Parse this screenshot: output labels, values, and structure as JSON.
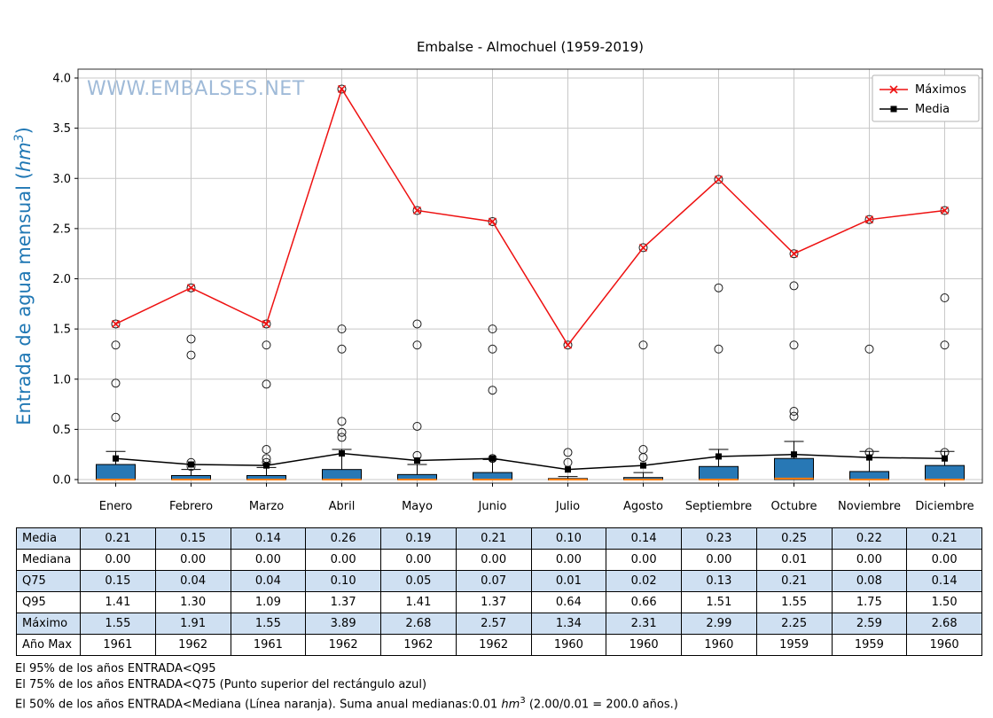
{
  "title": "Embalse - Almochuel (1959-2019)",
  "watermark": "WWW.EMBALSES.NET",
  "y_axis_label": {
    "prefix": "Entrada de agua mensual (",
    "unit": "hm",
    "sup": "3",
    "suffix": ")"
  },
  "chart_data": {
    "type": "boxplot",
    "title": "Embalse - Almochuel (1959-2019)",
    "ylabel": "Entrada de agua mensual (hm3)",
    "ylim": [
      0,
      4.0
    ],
    "yticks": [
      0.0,
      0.5,
      1.0,
      1.5,
      2.0,
      2.5,
      3.0,
      3.5,
      4.0
    ],
    "grid": true,
    "legend_position": "upper right",
    "categories": [
      "Enero",
      "Febrero",
      "Marzo",
      "Abril",
      "Mayo",
      "Junio",
      "Julio",
      "Agosto",
      "Septiembre",
      "Octubre",
      "Noviembre",
      "Diciembre"
    ],
    "series": [
      {
        "name": "Máximos",
        "type": "line",
        "marker": "x",
        "color": "#ee1111",
        "values": [
          1.55,
          1.91,
          1.55,
          3.89,
          2.68,
          2.57,
          1.34,
          2.31,
          2.99,
          2.25,
          2.59,
          2.68
        ]
      },
      {
        "name": "Media",
        "type": "line",
        "marker": "square",
        "color": "#000000",
        "values": [
          0.21,
          0.15,
          0.14,
          0.26,
          0.19,
          0.21,
          0.1,
          0.14,
          0.23,
          0.25,
          0.22,
          0.21
        ]
      }
    ],
    "box": {
      "median": [
        0.0,
        0.0,
        0.0,
        0.0,
        0.0,
        0.0,
        0.0,
        0.0,
        0.0,
        0.01,
        0.0,
        0.0
      ],
      "q25": [
        0.0,
        0.0,
        0.0,
        0.0,
        0.0,
        0.0,
        0.0,
        0.0,
        0.0,
        0.0,
        0.0,
        0.0
      ],
      "q75": [
        0.15,
        0.04,
        0.04,
        0.1,
        0.05,
        0.07,
        0.01,
        0.02,
        0.13,
        0.21,
        0.08,
        0.14
      ],
      "whisker_top": [
        0.28,
        0.1,
        0.12,
        0.3,
        0.15,
        0.2,
        0.03,
        0.07,
        0.3,
        0.38,
        0.28,
        0.28
      ],
      "outliers": [
        [
          0.62,
          0.96,
          1.34,
          1.55
        ],
        [
          0.13,
          0.17,
          1.24,
          1.4,
          1.91
        ],
        [
          0.17,
          0.21,
          0.3,
          0.95,
          1.34,
          1.55
        ],
        [
          0.42,
          0.47,
          0.58,
          1.3,
          1.5,
          3.89
        ],
        [
          0.24,
          0.53,
          1.34,
          1.55,
          2.68
        ],
        [
          0.21,
          0.89,
          1.3,
          1.5,
          2.57
        ],
        [
          0.17,
          0.27,
          1.34
        ],
        [
          0.22,
          0.3,
          1.34,
          2.31
        ],
        [
          1.3,
          1.91,
          2.99
        ],
        [
          0.63,
          0.68,
          1.34,
          1.93,
          2.25
        ],
        [
          0.27,
          1.3,
          2.59
        ],
        [
          0.27,
          1.34,
          1.81,
          2.68
        ]
      ]
    },
    "colors": {
      "box_fill": "#2878b5",
      "median_line": "#ff7f0e",
      "grid": "#c8c8c8",
      "ylabel": "#1f77b4",
      "watermark": "#8fafd2",
      "plot_border": "#2b2b2b"
    }
  },
  "table": {
    "rows": [
      {
        "label": "Media",
        "shaded": true,
        "values": [
          "0.21",
          "0.15",
          "0.14",
          "0.26",
          "0.19",
          "0.21",
          "0.10",
          "0.14",
          "0.23",
          "0.25",
          "0.22",
          "0.21"
        ]
      },
      {
        "label": "Mediana",
        "shaded": false,
        "values": [
          "0.00",
          "0.00",
          "0.00",
          "0.00",
          "0.00",
          "0.00",
          "0.00",
          "0.00",
          "0.00",
          "0.01",
          "0.00",
          "0.00"
        ]
      },
      {
        "label": "Q75",
        "shaded": true,
        "values": [
          "0.15",
          "0.04",
          "0.04",
          "0.10",
          "0.05",
          "0.07",
          "0.01",
          "0.02",
          "0.13",
          "0.21",
          "0.08",
          "0.14"
        ]
      },
      {
        "label": "Q95",
        "shaded": false,
        "values": [
          "1.41",
          "1.30",
          "1.09",
          "1.37",
          "1.41",
          "1.37",
          "0.64",
          "0.66",
          "1.51",
          "1.55",
          "1.75",
          "1.50"
        ]
      },
      {
        "label": "Máximo",
        "shaded": true,
        "values": [
          "1.55",
          "1.91",
          "1.55",
          "3.89",
          "2.68",
          "2.57",
          "1.34",
          "2.31",
          "2.99",
          "2.25",
          "2.59",
          "2.68"
        ]
      },
      {
        "label": "Año Max",
        "shaded": false,
        "values": [
          "1961",
          "1962",
          "1961",
          "1962",
          "1962",
          "1962",
          "1960",
          "1960",
          "1960",
          "1959",
          "1959",
          "1960"
        ]
      }
    ]
  },
  "footnotes": [
    "El 95% de los años ENTRADA<Q95",
    "El 75% de los años ENTRADA<Q75 (Punto superior del rectángulo azul)"
  ],
  "footnote3": {
    "pre": "El 50% de los años ENTRADA<Mediana (Línea naranja). Suma anual medianas:0.01 ",
    "unit": "hm",
    "sup": "3",
    "post": " (2.00/0.01 = 200.0 años.)"
  }
}
